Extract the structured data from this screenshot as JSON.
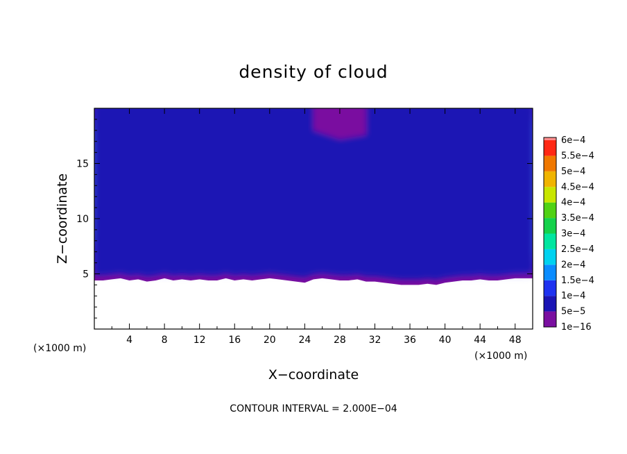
{
  "chart_data": {
    "type": "heatmap",
    "title": "density of cloud",
    "xlabel": "X−coordinate",
    "ylabel": "Z−coordinate",
    "x_unit_label": "(×1000 m)",
    "y_unit_label": "(×1000 m)",
    "xlim": [
      0,
      50
    ],
    "ylim": [
      0,
      20
    ],
    "x_ticks": [
      4,
      8,
      12,
      16,
      20,
      24,
      28,
      32,
      36,
      40,
      44,
      48
    ],
    "x_tick_labels": [
      "4",
      "8",
      "12",
      "16",
      "20",
      "24",
      "28",
      "32",
      "36",
      "40",
      "44",
      "48"
    ],
    "y_ticks": [
      5,
      10,
      15
    ],
    "y_tick_labels": [
      "5",
      "10",
      "15"
    ],
    "colorbar": {
      "levels": [
        1e-16,
        5e-05,
        0.0001,
        0.00015,
        0.0002,
        0.00025,
        0.0003,
        0.00035,
        0.0004,
        0.00045,
        0.0005,
        0.00055,
        0.0006
      ],
      "labels": [
        "1e−16",
        "5e−5",
        "1e−4",
        "1.5e−4",
        "2e−4",
        "2.5e−4",
        "3e−4",
        "3.5e−4",
        "4e−4",
        "4.5e−4",
        "5e−4",
        "5.5e−4",
        "6e−4"
      ],
      "colors": [
        "#7a0fa0",
        "#1a14b4",
        "#1e32f0",
        "#0a8cff",
        "#00d2f0",
        "#00e6a0",
        "#14d24b",
        "#50d214",
        "#c8e600",
        "#f0b400",
        "#f07800",
        "#ff2814",
        "#ff8c8c"
      ]
    },
    "cloud_base_z": [
      4.4,
      4.4,
      4.5,
      4.6,
      4.4,
      4.5,
      4.3,
      4.4,
      4.6,
      4.4,
      4.5,
      4.4,
      4.5,
      4.4,
      4.4,
      4.6,
      4.4,
      4.5,
      4.4,
      4.5,
      4.6,
      4.5,
      4.4,
      4.3,
      4.2,
      4.5,
      4.6,
      4.5,
      4.4,
      4.4,
      4.5,
      4.3,
      4.3,
      4.2,
      4.1,
      4.0,
      4.0,
      4.0,
      4.1,
      4.0,
      4.2,
      4.3,
      4.4,
      4.4,
      4.5,
      4.4,
      4.4,
      4.5,
      4.6,
      4.6,
      4.6
    ],
    "footer": "CONTOUR INTERVAL = 2.000E−04"
  }
}
